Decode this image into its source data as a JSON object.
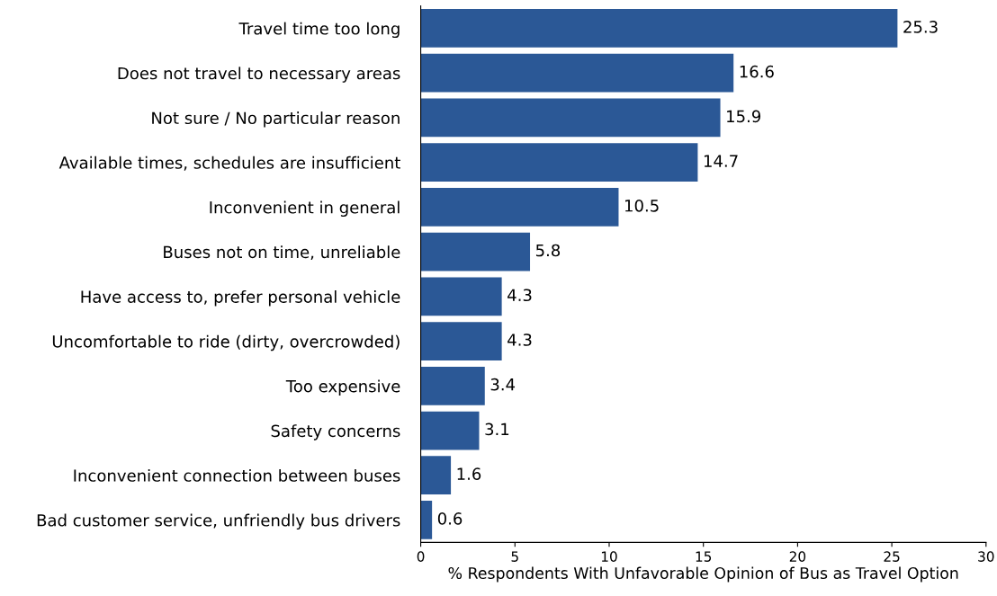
{
  "chart_data": {
    "type": "bar",
    "orientation": "horizontal",
    "categories": [
      "Travel time too long",
      "Does not travel to necessary areas",
      "Not sure / No particular reason",
      "Available times, schedules are insufficient",
      "Inconvenient in general",
      "Buses not on time, unreliable",
      "Have access to, prefer personal vehicle",
      "Uncomfortable to ride (dirty, overcrowded)",
      "Too expensive",
      "Safety concerns",
      "Inconvenient connection between buses",
      "Bad customer service, unfriendly bus drivers"
    ],
    "values": [
      25.3,
      16.6,
      15.9,
      14.7,
      10.5,
      5.8,
      4.3,
      4.3,
      3.4,
      3.1,
      1.6,
      0.6
    ],
    "color": "#2b5896",
    "xlabel": "% Respondents With Unfavorable Opinion of Bus as Travel Option",
    "xlim": [
      0,
      30
    ],
    "xticks": [
      0,
      5,
      10,
      15,
      20,
      25,
      30
    ],
    "data_labels": true,
    "grid": false,
    "legend": false
  }
}
